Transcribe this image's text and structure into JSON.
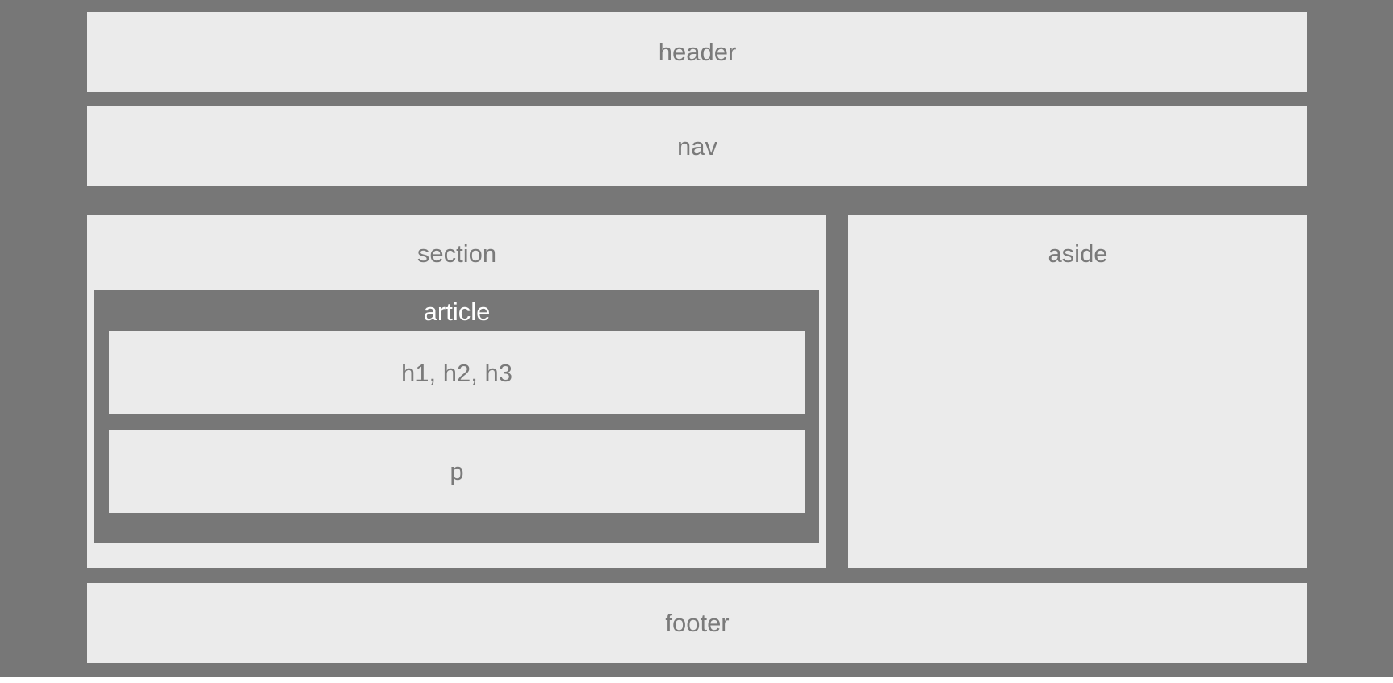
{
  "diagram": {
    "header": "header",
    "nav": "nav",
    "section": "section",
    "article": "article",
    "headings": "h1, h2, h3",
    "paragraph": "p",
    "aside": "aside",
    "footer": "footer"
  },
  "colors": {
    "background": "#777777",
    "box_fill": "#ebebeb",
    "box_text": "#7a7a7a",
    "article_text": "#ffffff"
  }
}
